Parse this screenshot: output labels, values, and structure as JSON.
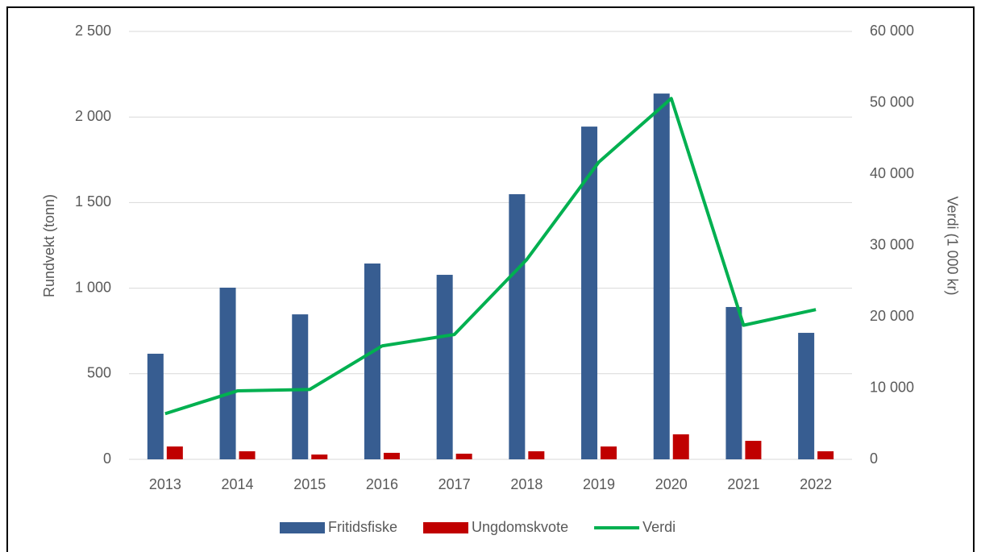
{
  "chart_data": {
    "type": "bar",
    "categories": [
      "2013",
      "2014",
      "2015",
      "2016",
      "2017",
      "2018",
      "2019",
      "2020",
      "2021",
      "2022"
    ],
    "series": [
      {
        "name": "Fritidsfiske",
        "type": "bar",
        "color": "#375d91",
        "values": [
          617,
          1003,
          847,
          1144,
          1078,
          1549,
          1944,
          2137,
          890,
          739
        ]
      },
      {
        "name": "Ungdomskvote",
        "type": "bar",
        "color": "#c00000",
        "values": [
          75,
          47,
          28,
          38,
          33,
          47,
          75,
          146,
          108,
          47
        ]
      },
      {
        "name": "Verdi",
        "type": "line",
        "axis": "y2",
        "color": "#00b050",
        "values": [
          6400,
          9600,
          9800,
          15900,
          17500,
          28000,
          41700,
          50600,
          18800,
          21000
        ]
      }
    ],
    "ylabel": "Rundvekt (tonn)",
    "y2label": "Verdi (1 000 kr)",
    "ylim": [
      0,
      2500
    ],
    "yticks": [
      0,
      {
        "value": 500,
        "label": "500"
      },
      {
        "value": 1000,
        "label": "1 000"
      },
      {
        "value": 1500,
        "label": "1 500"
      },
      {
        "value": 2000,
        "label": "2 000"
      },
      {
        "value": 2500,
        "label": "2 500"
      }
    ],
    "y2lim": [
      0,
      60000
    ],
    "y2ticks": [
      0,
      {
        "value": 10000,
        "label": "10 000"
      },
      {
        "value": 20000,
        "label": "20 000"
      },
      {
        "value": 30000,
        "label": "30 000"
      },
      {
        "value": 40000,
        "label": "40 000"
      },
      {
        "value": 50000,
        "label": "50 000"
      },
      {
        "value": 60000,
        "label": "60 000"
      }
    ],
    "grid": true,
    "legend": "bottom"
  }
}
